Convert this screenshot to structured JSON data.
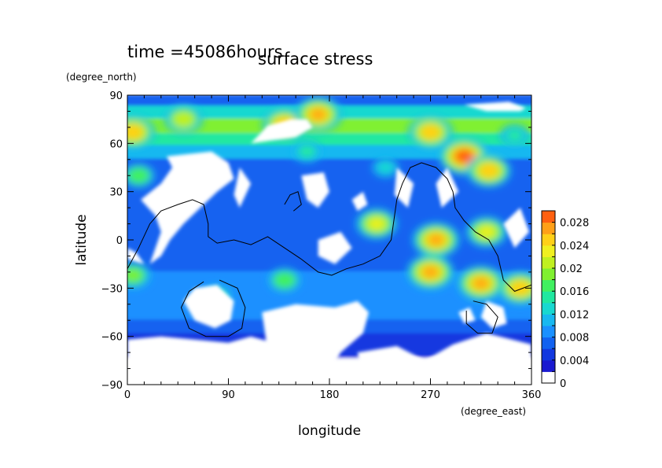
{
  "header": {
    "time_label": "time =45086hours",
    "title": "surface stress"
  },
  "chart_data": {
    "type": "heatmap",
    "title": "surface stress",
    "xlabel": "longitude",
    "ylabel": "latitude",
    "x_unit": "(degree_east)",
    "y_unit": "(degree_north)",
    "xlim": [
      0,
      360
    ],
    "ylim": [
      -90,
      90
    ],
    "x_ticks": [
      0,
      90,
      180,
      270,
      360
    ],
    "x_tick_labels": [
      "0",
      "90",
      "180",
      "270",
      "360"
    ],
    "y_ticks": [
      90,
      60,
      30,
      0,
      -30,
      -60,
      -90
    ],
    "y_tick_labels": [
      "90",
      "60",
      "30",
      "0",
      "−30",
      "−60",
      "−90"
    ],
    "colorbar": {
      "min": 0,
      "max": 0.03,
      "levels": [
        0,
        0.002,
        0.004,
        0.006,
        0.008,
        0.01,
        0.012,
        0.014,
        0.016,
        0.018,
        0.02,
        0.022,
        0.024,
        0.026,
        0.028,
        0.03
      ],
      "colors": [
        "#ffffff",
        "#1a1ad0",
        "#1238e0",
        "#1262f0",
        "#1a90ff",
        "#18b8f0",
        "#18d8d0",
        "#20e8a0",
        "#40f060",
        "#80f030",
        "#c0f020",
        "#f0f020",
        "#ffd018",
        "#ffa018",
        "#ff6010",
        "#e82010"
      ],
      "tick_values": [
        0,
        0.004,
        0.008,
        0.012,
        0.016,
        0.02,
        0.024,
        0.028
      ],
      "tick_labels": [
        "0",
        "0.004",
        "0.008",
        "0.012",
        "0.016",
        "0.02",
        "0.024",
        "0.028"
      ]
    },
    "band_profile": {
      "lat": [
        86,
        80,
        70,
        62,
        55,
        45,
        35,
        25,
        15,
        5,
        -5,
        -15,
        -25,
        -35,
        -45,
        -55,
        -62,
        -70,
        -78
      ],
      "value": [
        0.006,
        0.012,
        0.018,
        0.014,
        0.01,
        0.006,
        0.006,
        0.006,
        0.006,
        0.006,
        0.006,
        0.006,
        0.008,
        0.008,
        0.008,
        0.006,
        0.004,
        0.004,
        0.0
      ]
    },
    "hotspots": [
      {
        "lon": 5,
        "lat": 67,
        "value": 0.024
      },
      {
        "lon": 50,
        "lat": 75,
        "value": 0.02
      },
      {
        "lon": 140,
        "lat": 72,
        "value": 0.024
      },
      {
        "lon": 170,
        "lat": 78,
        "value": 0.026
      },
      {
        "lon": 270,
        "lat": 67,
        "value": 0.024
      },
      {
        "lon": 300,
        "lat": 52,
        "value": 0.028
      },
      {
        "lon": 322,
        "lat": 43,
        "value": 0.024
      },
      {
        "lon": 345,
        "lat": 65,
        "value": 0.014
      },
      {
        "lon": 275,
        "lat": 0,
        "value": 0.026
      },
      {
        "lon": 270,
        "lat": -20,
        "value": 0.026
      },
      {
        "lon": 315,
        "lat": -27,
        "value": 0.026
      },
      {
        "lon": 350,
        "lat": -30,
        "value": 0.024
      },
      {
        "lon": 320,
        "lat": 5,
        "value": 0.022
      },
      {
        "lon": 222,
        "lat": 10,
        "value": 0.022
      },
      {
        "lon": 140,
        "lat": -25,
        "value": 0.016
      },
      {
        "lon": 5,
        "lat": -22,
        "value": 0.018
      },
      {
        "lon": 80,
        "lat": -35,
        "value": 0.014
      },
      {
        "lon": 160,
        "lat": 55,
        "value": 0.014
      },
      {
        "lon": 230,
        "lat": 45,
        "value": 0.012
      },
      {
        "lon": 10,
        "lat": 40,
        "value": 0.016
      }
    ],
    "zero_regions": [
      [
        [
          110,
          60
        ],
        [
          125,
          71
        ],
        [
          145,
          75
        ],
        [
          160,
          75
        ],
        [
          165,
          70
        ],
        [
          150,
          64
        ],
        [
          130,
          62
        ]
      ],
      [
        [
          355,
          82
        ],
        [
          340,
          86
        ],
        [
          300,
          84
        ],
        [
          320,
          80
        ],
        [
          350,
          80
        ]
      ],
      [
        [
          35,
          52
        ],
        [
          75,
          55
        ],
        [
          90,
          48
        ],
        [
          95,
          38
        ],
        [
          80,
          30
        ],
        [
          65,
          20
        ],
        [
          50,
          10
        ],
        [
          38,
          0
        ],
        [
          30,
          -10
        ],
        [
          20,
          -15
        ],
        [
          30,
          5
        ],
        [
          25,
          15
        ],
        [
          12,
          25
        ],
        [
          30,
          35
        ],
        [
          40,
          45
        ]
      ],
      [
        [
          100,
          20
        ],
        [
          110,
          35
        ],
        [
          100,
          45
        ],
        [
          95,
          28
        ]
      ],
      [
        [
          155,
          40
        ],
        [
          175,
          42
        ],
        [
          180,
          30
        ],
        [
          170,
          20
        ],
        [
          160,
          25
        ]
      ],
      [
        [
          170,
          0
        ],
        [
          190,
          5
        ],
        [
          200,
          -5
        ],
        [
          185,
          -15
        ],
        [
          170,
          -10
        ]
      ],
      [
        [
          240,
          45
        ],
        [
          255,
          35
        ],
        [
          250,
          20
        ],
        [
          238,
          28
        ]
      ],
      [
        [
          275,
          35
        ],
        [
          285,
          45
        ],
        [
          295,
          30
        ],
        [
          280,
          20
        ]
      ],
      [
        [
          335,
          10
        ],
        [
          350,
          20
        ],
        [
          358,
          5
        ],
        [
          345,
          -5
        ]
      ],
      [
        [
          200,
          25
        ],
        [
          210,
          30
        ],
        [
          214,
          22
        ],
        [
          205,
          18
        ]
      ],
      [
        [
          50,
          -38
        ],
        [
          60,
          -30
        ],
        [
          80,
          -28
        ],
        [
          95,
          -38
        ],
        [
          92,
          -50
        ],
        [
          78,
          -55
        ],
        [
          60,
          -50
        ]
      ],
      [
        [
          0,
          -5
        ],
        [
          8,
          -8
        ],
        [
          15,
          -15
        ],
        [
          0,
          -12
        ]
      ],
      [
        [
          120,
          -45
        ],
        [
          150,
          -40
        ],
        [
          185,
          -42
        ],
        [
          205,
          -38
        ],
        [
          215,
          -45
        ],
        [
          210,
          -58
        ],
        [
          190,
          -70
        ],
        [
          175,
          -90
        ],
        [
          140,
          -90
        ],
        [
          125,
          -70
        ]
      ],
      [
        [
          0,
          -62
        ],
        [
          30,
          -60
        ],
        [
          60,
          -62
        ],
        [
          90,
          -64
        ],
        [
          110,
          -60
        ],
        [
          130,
          -64
        ],
        [
          140,
          -90
        ],
        [
          0,
          -90
        ]
      ],
      [
        [
          205,
          -70
        ],
        [
          240,
          -66
        ],
        [
          265,
          -75
        ],
        [
          290,
          -65
        ],
        [
          320,
          -58
        ],
        [
          360,
          -65
        ],
        [
          360,
          -90
        ],
        [
          210,
          -90
        ]
      ],
      [
        [
          320,
          -38
        ],
        [
          335,
          -42
        ],
        [
          338,
          -52
        ],
        [
          325,
          -55
        ],
        [
          315,
          -48
        ]
      ],
      [
        [
          295,
          -45
        ],
        [
          305,
          -42
        ],
        [
          310,
          -50
        ],
        [
          300,
          -52
        ]
      ]
    ],
    "contours": [
      [
        [
          0,
          -18
        ],
        [
          10,
          -5
        ],
        [
          20,
          10
        ],
        [
          30,
          18
        ],
        [
          45,
          22
        ],
        [
          58,
          25
        ],
        [
          68,
          22
        ],
        [
          72,
          10
        ],
        [
          72,
          2
        ],
        [
          80,
          -2
        ],
        [
          95,
          0
        ],
        [
          110,
          -3
        ],
        [
          125,
          2
        ],
        [
          140,
          -5
        ],
        [
          155,
          -12
        ],
        [
          170,
          -20
        ],
        [
          182,
          -22
        ],
        [
          195,
          -18
        ],
        [
          210,
          -15
        ],
        [
          225,
          -10
        ],
        [
          235,
          0
        ],
        [
          238,
          15
        ],
        [
          240,
          25
        ],
        [
          245,
          35
        ],
        [
          252,
          45
        ],
        [
          262,
          48
        ],
        [
          275,
          45
        ],
        [
          285,
          38
        ],
        [
          290,
          30
        ],
        [
          292,
          20
        ],
        [
          300,
          12
        ],
        [
          310,
          5
        ],
        [
          322,
          0
        ],
        [
          330,
          -10
        ],
        [
          335,
          -25
        ],
        [
          345,
          -32
        ],
        [
          360,
          -28
        ]
      ],
      [
        [
          140,
          22
        ],
        [
          145,
          28
        ],
        [
          152,
          30
        ],
        [
          155,
          22
        ],
        [
          148,
          18
        ]
      ],
      [
        [
          82,
          -25
        ],
        [
          98,
          -30
        ],
        [
          105,
          -42
        ],
        [
          102,
          -55
        ],
        [
          90,
          -60
        ],
        [
          70,
          -60
        ],
        [
          55,
          -55
        ],
        [
          48,
          -42
        ],
        [
          55,
          -32
        ],
        [
          68,
          -26
        ]
      ],
      [
        [
          308,
          -38
        ],
        [
          320,
          -40
        ],
        [
          330,
          -48
        ],
        [
          325,
          -58
        ],
        [
          312,
          -58
        ],
        [
          302,
          -52
        ],
        [
          302,
          -44
        ]
      ]
    ]
  }
}
